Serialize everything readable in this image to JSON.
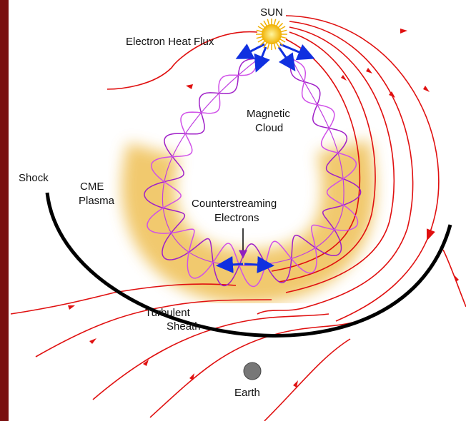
{
  "labels": {
    "sun": "SUN",
    "heat_flux": "Electron Heat Flux",
    "magnetic_cloud": [
      "Magnetic",
      "Cloud"
    ],
    "shock": "Shock",
    "cme_plasma": [
      "CME",
      "Plasma"
    ],
    "counterstreaming": [
      "Counterstreaming",
      "Electrons"
    ],
    "sheath": [
      "Turbulent",
      "Sheath"
    ],
    "earth": "Earth"
  }
}
